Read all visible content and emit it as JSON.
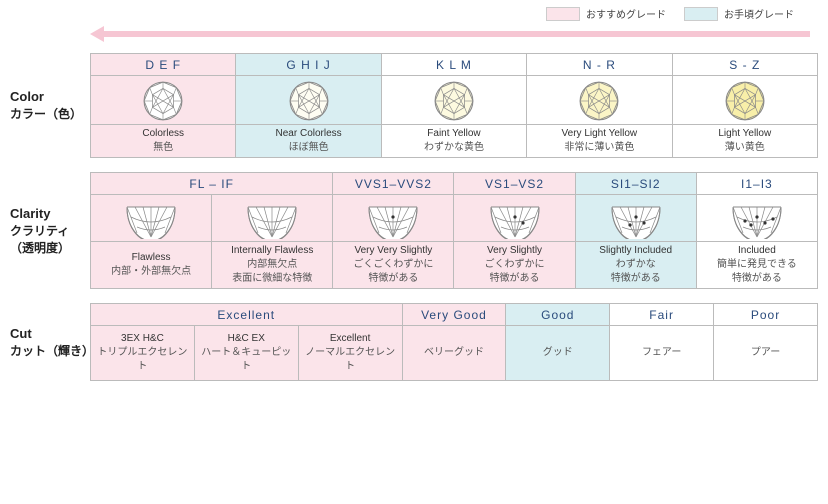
{
  "colors": {
    "pink_bg": "#fbe4ea",
    "blue_bg": "#d9eef2",
    "white_bg": "#ffffff",
    "arrow_fill": "#f6c6d3",
    "th_text": "#2a4b7c",
    "border": "#bbbbbb",
    "icon_stroke": "#888888"
  },
  "legend": {
    "items": [
      {
        "label": "おすすめグレード",
        "swatch": "pink_bg"
      },
      {
        "label": "お手頃グレード",
        "swatch": "blue_bg"
      }
    ]
  },
  "sections": {
    "color": {
      "label_en": "Color",
      "label_jp": "カラー（色）",
      "headers": [
        "D E F",
        "G H I J",
        "K L M",
        "N - R",
        "S - Z"
      ],
      "header_tiers": [
        "pink_bg",
        "blue_bg",
        "white_bg",
        "white_bg",
        "white_bg"
      ],
      "diamond_fills": [
        "#ffffff",
        "#fefdf2",
        "#fdfae0",
        "#fbf5c6",
        "#f8efa9"
      ],
      "cells": [
        {
          "en": "Colorless",
          "jp": "無色"
        },
        {
          "en": "Near Colorless",
          "jp": "ほぼ無色"
        },
        {
          "en": "Faint Yellow",
          "jp": "わずかな黄色"
        },
        {
          "en": "Very Light Yellow",
          "jp": "非常に薄い黄色"
        },
        {
          "en": "Light Yellow",
          "jp": "薄い黄色"
        }
      ]
    },
    "clarity": {
      "label_en": "Clarity",
      "label_jp": "クラリティ（透明度）",
      "headers": [
        "FL  –  IF",
        "VVS1–VVS2",
        "VS1–VS2",
        "SI1–SI2",
        "I1–I3"
      ],
      "header_spans": [
        2,
        1,
        1,
        1,
        1
      ],
      "header_tiers": [
        "pink_bg",
        "pink_bg",
        "pink_bg",
        "blue_bg",
        "white_bg"
      ],
      "inclusion_levels": [
        0,
        0,
        1,
        2,
        3,
        5
      ],
      "cells": [
        {
          "en": "Flawless",
          "jp": "内部・外部無欠点"
        },
        {
          "en": "Internally Flawless",
          "jp": "内部無欠点\n表面に微細な特徴"
        },
        {
          "en": "Very Very Slightly",
          "jp": "ごくごくわずかに\n特徴がある"
        },
        {
          "en": "Very Slightly",
          "jp": "ごくわずかに\n特徴がある"
        },
        {
          "en": "Slightly Included",
          "jp": "わずかな\n特徴がある"
        },
        {
          "en": "Included",
          "jp": "簡単に発見できる\n特徴がある"
        }
      ]
    },
    "cut": {
      "label_en": "Cut",
      "label_jp": "カット（輝き）",
      "headers": [
        "Excellent",
        "Very Good",
        "Good",
        "Fair",
        "Poor"
      ],
      "header_spans": [
        3,
        1,
        1,
        1,
        1
      ],
      "header_tiers": [
        "pink_bg",
        "pink_bg",
        "blue_bg",
        "white_bg",
        "white_bg"
      ],
      "cells": [
        {
          "en": "3EX H&C",
          "jp": "トリプルエクセレント"
        },
        {
          "en": "H&C EX",
          "jp": "ハート＆キューピット"
        },
        {
          "en": "Excellent",
          "jp": "ノーマルエクセレント"
        },
        {
          "en": "",
          "jp": "ベリーグッド"
        },
        {
          "en": "",
          "jp": "グッド"
        },
        {
          "en": "",
          "jp": "フェアー"
        },
        {
          "en": "",
          "jp": "プアー"
        }
      ]
    }
  }
}
